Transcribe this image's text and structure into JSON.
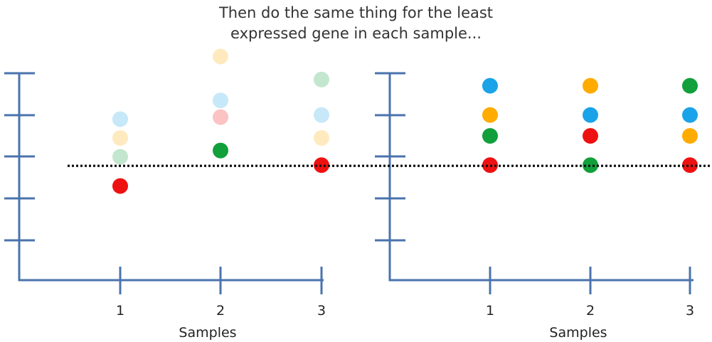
{
  "title": {
    "line1": "Then do the same thing for the least",
    "line2": "expressed gene in each sample..."
  },
  "colors": {
    "axis": "#4a73ad",
    "dotted_line": "#111111",
    "blue": "#1aa3e8",
    "orange": "#ffab00",
    "red": "#ee1111",
    "green": "#11a03b"
  },
  "panels": [
    {
      "name": "before",
      "xlabel": "Samples",
      "samples": [
        "1",
        "2",
        "3"
      ],
      "y_ticks": 5,
      "points": [
        {
          "sample": 1,
          "level": 2.3,
          "color": "red",
          "faded": false
        },
        {
          "sample": 1,
          "level": 3.0,
          "color": "green",
          "faded": true
        },
        {
          "sample": 1,
          "level": 3.45,
          "color": "orange",
          "faded": true
        },
        {
          "sample": 1,
          "level": 3.9,
          "color": "blue",
          "faded": true
        },
        {
          "sample": 2,
          "level": 3.15,
          "color": "green",
          "faded": false
        },
        {
          "sample": 2,
          "level": 3.95,
          "color": "red",
          "faded": true
        },
        {
          "sample": 2,
          "level": 4.35,
          "color": "blue",
          "faded": true
        },
        {
          "sample": 2,
          "level": 5.4,
          "color": "orange",
          "faded": true
        },
        {
          "sample": 3,
          "level": 2.8,
          "color": "red",
          "faded": false
        },
        {
          "sample": 3,
          "level": 3.45,
          "color": "orange",
          "faded": true
        },
        {
          "sample": 3,
          "level": 4.0,
          "color": "blue",
          "faded": true
        },
        {
          "sample": 3,
          "level": 4.85,
          "color": "green",
          "faded": true
        }
      ]
    },
    {
      "name": "after",
      "xlabel": "Samples",
      "samples": [
        "1",
        "2",
        "3"
      ],
      "y_ticks": 5,
      "points": [
        {
          "sample": 1,
          "level": 2.8,
          "color": "red",
          "faded": false
        },
        {
          "sample": 1,
          "level": 3.5,
          "color": "green",
          "faded": false
        },
        {
          "sample": 1,
          "level": 4.0,
          "color": "orange",
          "faded": false
        },
        {
          "sample": 1,
          "level": 4.7,
          "color": "blue",
          "faded": false
        },
        {
          "sample": 2,
          "level": 2.8,
          "color": "green",
          "faded": false
        },
        {
          "sample": 2,
          "level": 3.5,
          "color": "red",
          "faded": false
        },
        {
          "sample": 2,
          "level": 4.0,
          "color": "blue",
          "faded": false
        },
        {
          "sample": 2,
          "level": 4.7,
          "color": "orange",
          "faded": false
        },
        {
          "sample": 3,
          "level": 2.8,
          "color": "red",
          "faded": false
        },
        {
          "sample": 3,
          "level": 3.5,
          "color": "orange",
          "faded": false
        },
        {
          "sample": 3,
          "level": 4.0,
          "color": "blue",
          "faded": false
        },
        {
          "sample": 3,
          "level": 4.7,
          "color": "green",
          "faded": false
        }
      ]
    }
  ],
  "reference_level": 2.8
}
